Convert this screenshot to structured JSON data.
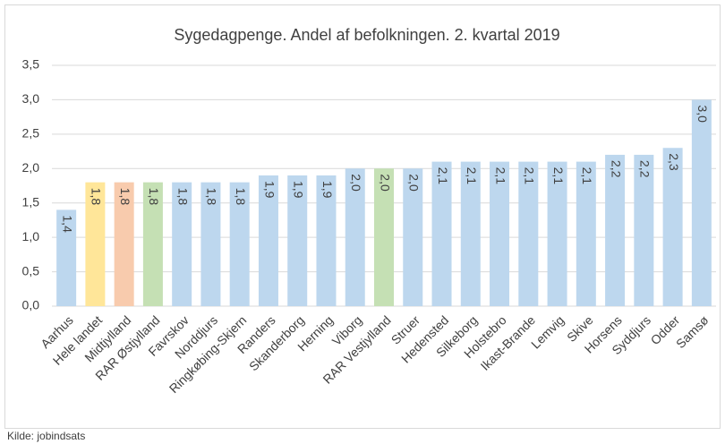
{
  "chart_data": {
    "type": "bar",
    "title": "Sygedagpenge. Andel af befolkningen. 2. kvartal 2019",
    "categories": [
      "Aarhus",
      "Hele landet",
      "Midtjylland",
      "RAR Østjylland",
      "Favrskov",
      "Norddjurs",
      "Ringkøbing-Skjern",
      "Randers",
      "Skanderborg",
      "Herning",
      "Viborg",
      "RAR Vestjylland",
      "Struer",
      "Hedensted",
      "Silkeborg",
      "Holstebro",
      "Ikast-Brande",
      "Lemvig",
      "Skive",
      "Horsens",
      "Syddjurs",
      "Odder",
      "Samsø"
    ],
    "values": [
      1.4,
      1.8,
      1.8,
      1.8,
      1.8,
      1.8,
      1.8,
      1.9,
      1.9,
      1.9,
      2.0,
      2.0,
      2.0,
      2.1,
      2.1,
      2.1,
      2.1,
      2.1,
      2.1,
      2.2,
      2.2,
      2.3,
      3.0
    ],
    "value_labels": [
      "1,4",
      "1,8",
      "1,8",
      "1,8",
      "1,8",
      "1,8",
      "1,8",
      "1,9",
      "1,9",
      "1,9",
      "2,0",
      "2,0",
      "2,0",
      "2,1",
      "2,1",
      "2,1",
      "2,1",
      "2,1",
      "2,1",
      "2,2",
      "2,2",
      "2,3",
      "3,0"
    ],
    "colors": [
      "#bdd7ee",
      "#ffe699",
      "#f8cbad",
      "#c5e0b4",
      "#bdd7ee",
      "#bdd7ee",
      "#bdd7ee",
      "#bdd7ee",
      "#bdd7ee",
      "#bdd7ee",
      "#bdd7ee",
      "#c5e0b4",
      "#bdd7ee",
      "#bdd7ee",
      "#bdd7ee",
      "#bdd7ee",
      "#bdd7ee",
      "#bdd7ee",
      "#bdd7ee",
      "#bdd7ee",
      "#bdd7ee",
      "#bdd7ee",
      "#bdd7ee"
    ],
    "ylim": [
      0,
      3.5
    ],
    "yticks": [
      {
        "value": 0,
        "label": "0,0"
      },
      {
        "value": 0.5,
        "label": "0,5"
      },
      {
        "value": 1,
        "label": "1,0"
      },
      {
        "value": 1.5,
        "label": "1,5"
      },
      {
        "value": 2,
        "label": "2,0"
      },
      {
        "value": 2.5,
        "label": "2,5"
      },
      {
        "value": 3,
        "label": "3,0"
      },
      {
        "value": 3.5,
        "label": "3,5"
      }
    ],
    "grid": true,
    "source": "Kilde: jobindsats"
  }
}
